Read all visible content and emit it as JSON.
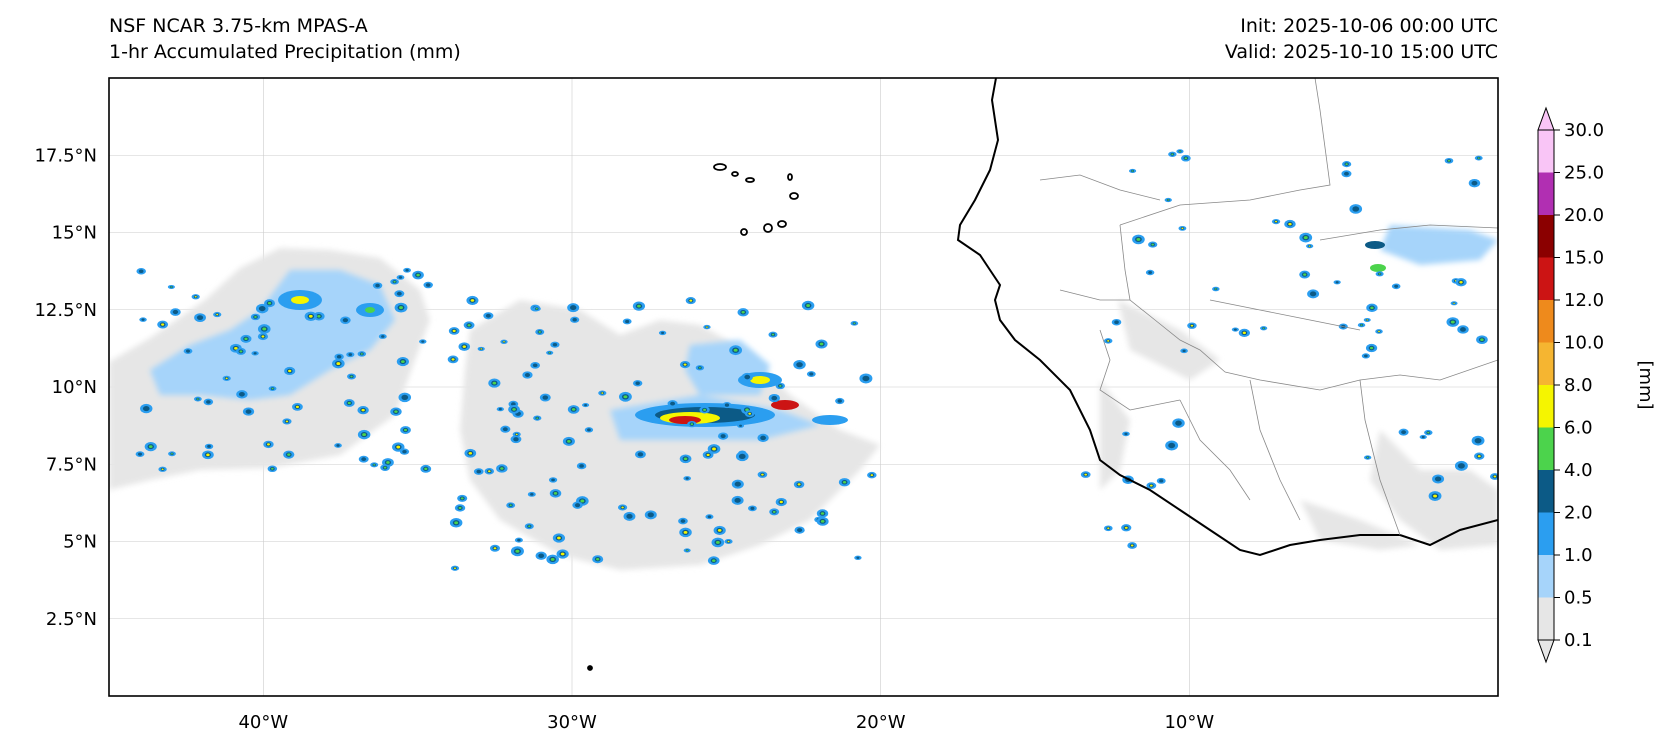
{
  "header": {
    "model": "NSF NCAR 3.75-km MPAS-A",
    "field": "1-hr Accumulated Precipitation (mm)",
    "init": "Init: 2025-10-06 00:00 UTC",
    "valid": "Valid: 2025-10-10 15:00 UTC"
  },
  "map": {
    "extent": {
      "lon_min": -45,
      "lon_max": 0,
      "lat_min": 0,
      "lat_max": 20
    },
    "lat_ticks": [
      {
        "value": 17.5,
        "label": "17.5°N"
      },
      {
        "value": 15,
        "label": "15°N"
      },
      {
        "value": 12.5,
        "label": "12.5°N"
      },
      {
        "value": 10,
        "label": "10°N"
      },
      {
        "value": 7.5,
        "label": "7.5°N"
      },
      {
        "value": 5,
        "label": "5°N"
      },
      {
        "value": 2.5,
        "label": "2.5°N"
      }
    ],
    "lon_ticks": [
      {
        "value": -40,
        "label": "40°W"
      },
      {
        "value": -30,
        "label": "30°W"
      },
      {
        "value": -20,
        "label": "20°W"
      },
      {
        "value": -10,
        "label": "10°W"
      }
    ],
    "gridlines": true
  },
  "colorbar": {
    "unit_label": "[mm]",
    "levels": [
      "0.1",
      "0.5",
      "1.0",
      "2.0",
      "4.0",
      "6.0",
      "8.0",
      "10.0",
      "12.0",
      "15.0",
      "20.0",
      "25.0",
      "30.0"
    ],
    "colors": [
      "#e6e6e6",
      "#a6d4fa",
      "#2b9ef0",
      "#0c5a86",
      "#4cd34c",
      "#f5f500",
      "#f5b531",
      "#ee8a1c",
      "#cc1414",
      "#8b0000",
      "#b12fb2",
      "#f9c5f6"
    ],
    "extend": "both"
  }
}
